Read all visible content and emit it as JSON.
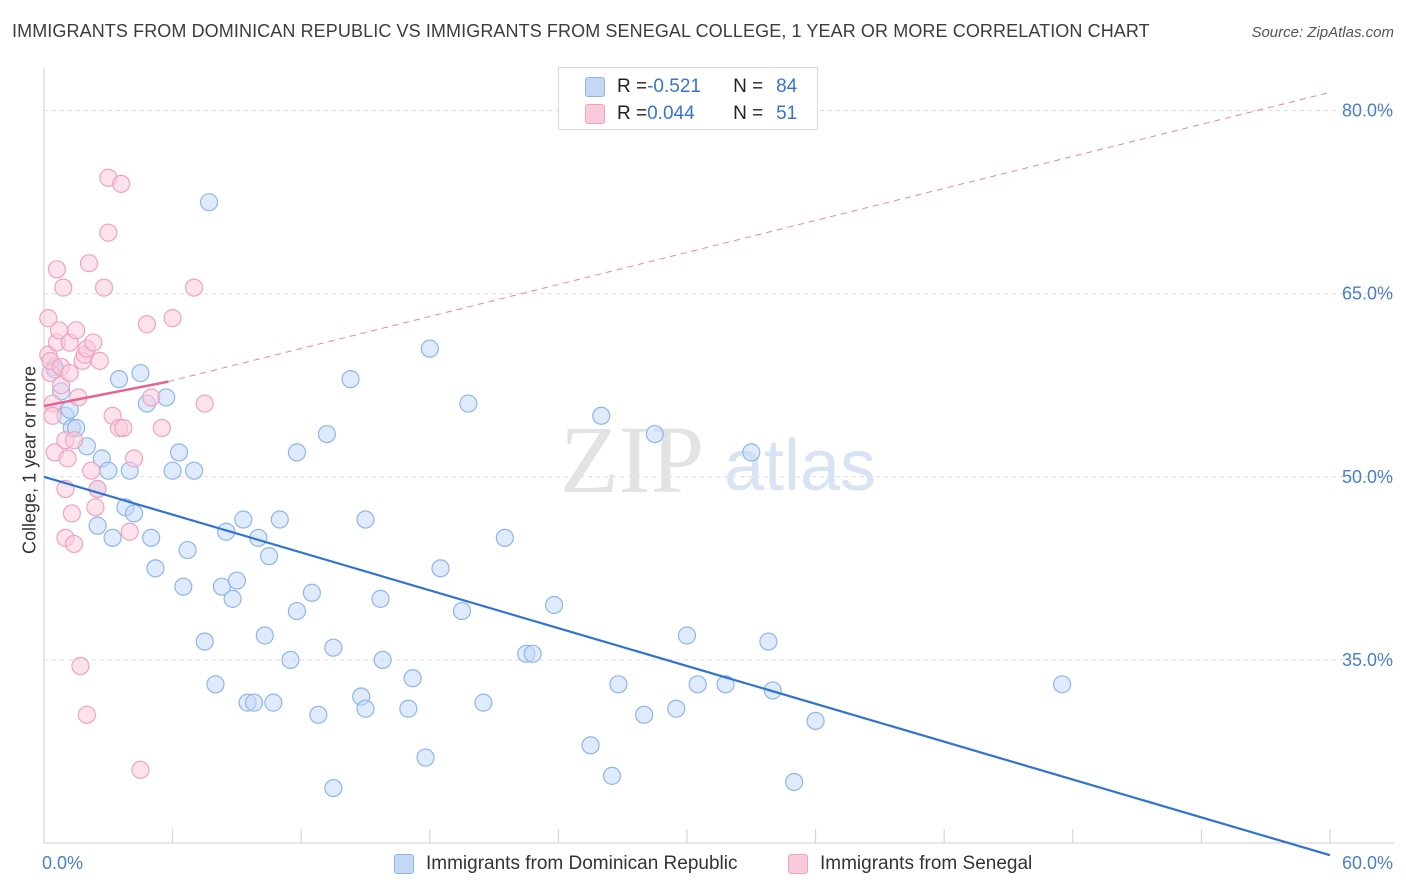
{
  "chart_data": {
    "type": "scatter",
    "title": "IMMIGRANTS FROM DOMINICAN REPUBLIC VS IMMIGRANTS FROM SENEGAL COLLEGE, 1 YEAR OR MORE CORRELATION CHART",
    "source": "Source: ZipAtlas.com",
    "xlabel": "",
    "ylabel": "College, 1 year or more",
    "xlim": [
      0,
      60
    ],
    "ylim": [
      20,
      83
    ],
    "x_tick_labels": [
      "0.0%",
      "60.0%"
    ],
    "y_ticks": [
      80,
      65,
      50,
      35
    ],
    "y_tick_labels": [
      "80.0%",
      "65.0%",
      "50.0%",
      "35.0%"
    ],
    "watermark": "ZIPatlas",
    "legend": [
      {
        "r_label": "R = ",
        "r_value": "-0.521",
        "n_label": "N = ",
        "n_value": "84"
      },
      {
        "r_label": "R = ",
        "r_value": "0.044",
        "n_label": "N = ",
        "n_value": "51"
      }
    ],
    "series": [
      {
        "name": "Immigrants from Dominican Republic",
        "color": "#8fb6ea",
        "fill": "#c4d8f5",
        "line_color": "#2f74d0",
        "trend": {
          "x0": 0,
          "y0": 50.0,
          "x1": 60,
          "y1": 19.0,
          "dashed": false
        },
        "points": [
          [
            0.5,
            59.0
          ],
          [
            0.5,
            58.8
          ],
          [
            0.8,
            57.0
          ],
          [
            1.0,
            55.0
          ],
          [
            1.2,
            55.5
          ],
          [
            1.3,
            54.0
          ],
          [
            1.5,
            54.0
          ],
          [
            2.0,
            52.5
          ],
          [
            2.5,
            49.0
          ],
          [
            2.5,
            46.0
          ],
          [
            2.7,
            51.5
          ],
          [
            3.2,
            45.0
          ],
          [
            3.0,
            50.5
          ],
          [
            3.5,
            58.0
          ],
          [
            3.8,
            47.5
          ],
          [
            4.0,
            50.5
          ],
          [
            4.2,
            47.0
          ],
          [
            4.5,
            58.5
          ],
          [
            4.8,
            56.0
          ],
          [
            5.0,
            45.0
          ],
          [
            5.2,
            42.5
          ],
          [
            5.7,
            56.5
          ],
          [
            6.0,
            50.5
          ],
          [
            6.3,
            52.0
          ],
          [
            6.5,
            41.0
          ],
          [
            6.7,
            44.0
          ],
          [
            7.0,
            50.5
          ],
          [
            7.5,
            36.5
          ],
          [
            7.7,
            72.5
          ],
          [
            8.0,
            33.0
          ],
          [
            8.3,
            41.0
          ],
          [
            8.5,
            45.5
          ],
          [
            8.8,
            40.0
          ],
          [
            9.0,
            41.5
          ],
          [
            9.3,
            46.5
          ],
          [
            9.5,
            31.5
          ],
          [
            9.8,
            31.5
          ],
          [
            10.0,
            45.0
          ],
          [
            10.3,
            37.0
          ],
          [
            10.5,
            43.5
          ],
          [
            10.7,
            31.5
          ],
          [
            11.0,
            46.5
          ],
          [
            11.5,
            35.0
          ],
          [
            11.8,
            39.0
          ],
          [
            11.8,
            52.0
          ],
          [
            12.5,
            40.5
          ],
          [
            12.8,
            30.5
          ],
          [
            13.2,
            53.5
          ],
          [
            13.5,
            24.5
          ],
          [
            13.5,
            36.0
          ],
          [
            14.3,
            58.0
          ],
          [
            14.8,
            32.0
          ],
          [
            15.0,
            31.0
          ],
          [
            15.0,
            46.5
          ],
          [
            15.7,
            40.0
          ],
          [
            15.8,
            35.0
          ],
          [
            17.0,
            31.0
          ],
          [
            17.2,
            33.5
          ],
          [
            17.8,
            27.0
          ],
          [
            18.0,
            60.5
          ],
          [
            18.5,
            42.5
          ],
          [
            19.5,
            39.0
          ],
          [
            19.8,
            56.0
          ],
          [
            20.5,
            31.5
          ],
          [
            21.5,
            45.0
          ],
          [
            22.5,
            35.5
          ],
          [
            22.8,
            35.5
          ],
          [
            23.8,
            39.5
          ],
          [
            25.5,
            28.0
          ],
          [
            26.0,
            55.0
          ],
          [
            26.5,
            25.5
          ],
          [
            26.8,
            33.0
          ],
          [
            28.0,
            30.5
          ],
          [
            28.5,
            53.5
          ],
          [
            29.5,
            31.0
          ],
          [
            30.0,
            37.0
          ],
          [
            30.5,
            33.0
          ],
          [
            31.8,
            33.0
          ],
          [
            33.0,
            52.0
          ],
          [
            33.8,
            36.5
          ],
          [
            34.0,
            32.5
          ],
          [
            35.0,
            25.0
          ],
          [
            36.0,
            30.0
          ],
          [
            47.5,
            33.0
          ]
        ]
      },
      {
        "name": "Immigrants from Senegal",
        "color": "#f2a2bf",
        "fill": "#f8cadb",
        "line_color": "#e8638f",
        "trend": {
          "x0": 0,
          "y0": 55.8,
          "x1": 5.8,
          "y1": 57.8,
          "x_ext": 60,
          "y_ext": 81.5,
          "dashed": true
        },
        "points": [
          [
            0.2,
            63.0
          ],
          [
            0.2,
            60.0
          ],
          [
            0.3,
            58.5
          ],
          [
            0.3,
            59.5
          ],
          [
            0.4,
            56.0
          ],
          [
            0.4,
            55.0
          ],
          [
            0.5,
            52.0
          ],
          [
            0.6,
            67.0
          ],
          [
            0.6,
            61.0
          ],
          [
            0.7,
            62.0
          ],
          [
            0.8,
            57.5
          ],
          [
            0.8,
            59.0
          ],
          [
            0.9,
            65.5
          ],
          [
            1.0,
            53.0
          ],
          [
            1.0,
            45.0
          ],
          [
            1.0,
            49.0
          ],
          [
            1.1,
            51.5
          ],
          [
            1.2,
            61.0
          ],
          [
            1.2,
            58.5
          ],
          [
            1.3,
            47.0
          ],
          [
            1.4,
            53.0
          ],
          [
            1.4,
            44.5
          ],
          [
            1.5,
            62.0
          ],
          [
            1.6,
            56.5
          ],
          [
            1.7,
            34.5
          ],
          [
            1.8,
            59.5
          ],
          [
            1.9,
            60.0
          ],
          [
            2.0,
            30.5
          ],
          [
            2.0,
            60.5
          ],
          [
            2.1,
            67.5
          ],
          [
            2.2,
            50.5
          ],
          [
            2.3,
            61.0
          ],
          [
            2.4,
            47.5
          ],
          [
            2.5,
            49.0
          ],
          [
            2.6,
            59.5
          ],
          [
            2.8,
            65.5
          ],
          [
            3.0,
            74.5
          ],
          [
            3.0,
            70.0
          ],
          [
            3.2,
            55.0
          ],
          [
            3.5,
            54.0
          ],
          [
            3.6,
            74.0
          ],
          [
            3.7,
            54.0
          ],
          [
            4.0,
            45.5
          ],
          [
            4.2,
            51.5
          ],
          [
            4.5,
            26.0
          ],
          [
            4.8,
            62.5
          ],
          [
            5.0,
            56.5
          ],
          [
            5.5,
            54.0
          ],
          [
            6.0,
            63.0
          ],
          [
            7.0,
            65.5
          ],
          [
            7.5,
            56.0
          ]
        ]
      }
    ]
  }
}
